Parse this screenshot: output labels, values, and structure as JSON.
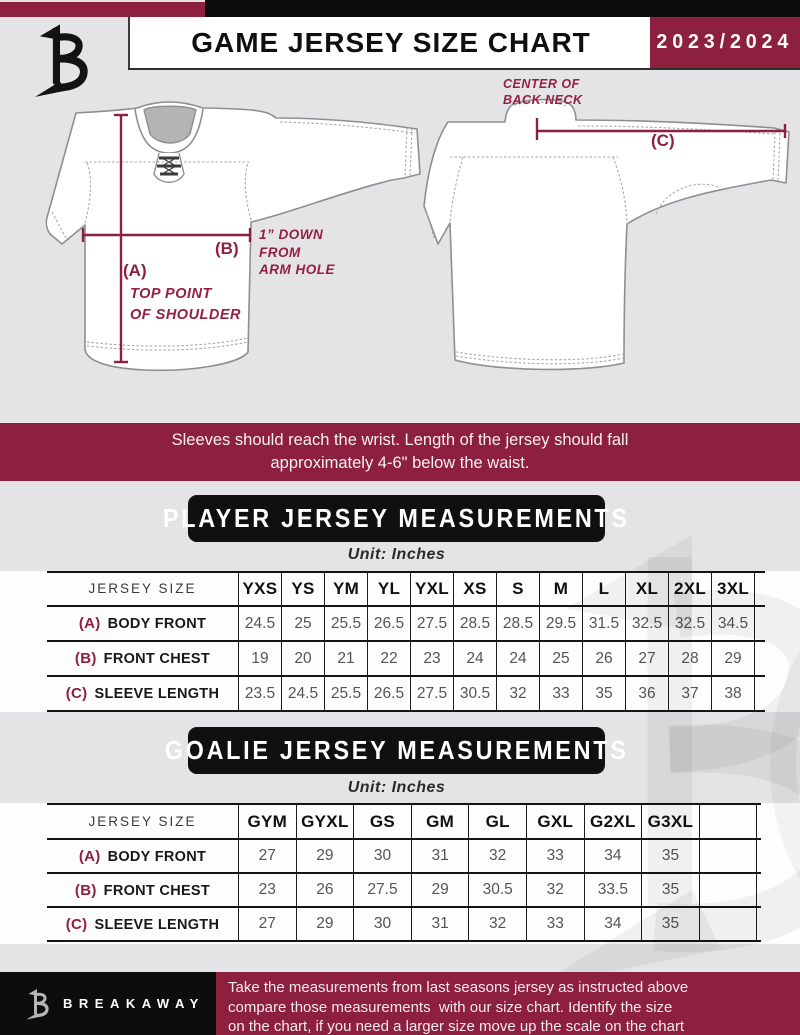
{
  "header": {
    "title": "GAME JERSEY SIZE CHART",
    "season": "2023/2024"
  },
  "diagram": {
    "front": {
      "a_label": "(A)",
      "a_note_lines": [
        "TOP POINT",
        "OF SHOULDER"
      ],
      "b_label": "(B)",
      "b_note_lines": [
        "1” DOWN",
        "FROM",
        "ARM HOLE"
      ]
    },
    "back": {
      "c_label": "(C)",
      "c_note_lines": [
        "CENTER OF",
        "BACK NECK"
      ]
    }
  },
  "note_band": {
    "lines": [
      "Sleeves should reach the wrist. Length of the jersey should fall",
      "approximately 4-6\" below the waist."
    ]
  },
  "player_section": {
    "title": "PLAYER JERSEY MEASUREMENTS",
    "unit": "Unit: Inches"
  },
  "goalie_section": {
    "title": "GOALIE JERSEY MEASUREMENTS",
    "unit": "Unit: Inches"
  },
  "player_table": {
    "size_label": "JERSEY SIZE",
    "columns": [
      "YXS",
      "YS",
      "YM",
      "YL",
      "YXL",
      "XS",
      "S",
      "M",
      "L",
      "XL",
      "2XL",
      "3XL"
    ],
    "empty_col": false,
    "rows": [
      {
        "key": "(A)",
        "label": "BODY FRONT",
        "values": [
          "24.5",
          "25",
          "25.5",
          "26.5",
          "27.5",
          "28.5",
          "28.5",
          "29.5",
          "31.5",
          "32.5",
          "32.5",
          "34.5"
        ]
      },
      {
        "key": "(B)",
        "label": "FRONT CHEST",
        "values": [
          "19",
          "20",
          "21",
          "22",
          "23",
          "24",
          "24",
          "25",
          "26",
          "27",
          "28",
          "29"
        ]
      },
      {
        "key": "(C)",
        "label": "SLEEVE LENGTH",
        "values": [
          "23.5",
          "24.5",
          "25.5",
          "26.5",
          "27.5",
          "30.5",
          "32",
          "33",
          "35",
          "36",
          "37",
          "38"
        ]
      }
    ]
  },
  "goalie_table": {
    "size_label": "JERSEY SIZE",
    "columns": [
      "GYM",
      "GYXL",
      "GS",
      "GM",
      "GL",
      "GXL",
      "G2XL",
      "G3XL"
    ],
    "empty_col": true,
    "rows": [
      {
        "key": "(A)",
        "label": "BODY FRONT",
        "values": [
          "27",
          "29",
          "30",
          "31",
          "32",
          "33",
          "34",
          "35"
        ]
      },
      {
        "key": "(B)",
        "label": "FRONT CHEST",
        "values": [
          "23",
          "26",
          "27.5",
          "29",
          "30.5",
          "32",
          "33.5",
          "35"
        ]
      },
      {
        "key": "(C)",
        "label": "SLEEVE LENGTH",
        "values": [
          "27",
          "29",
          "30",
          "31",
          "32",
          "33",
          "34",
          "35"
        ]
      }
    ]
  },
  "footer": {
    "brand": "BREAKAWAY",
    "lines": [
      "Take the measurements from last seasons jersey as instructed above",
      "compare those measurements  with our size chart. Identify the size",
      "on the chart, if you need a larger size move up the scale on the chart"
    ]
  },
  "colors": {
    "maroon": "#8d1f3f",
    "black": "#0d0d0d",
    "annotation": "#951f42",
    "background": "#e4e4e6"
  }
}
